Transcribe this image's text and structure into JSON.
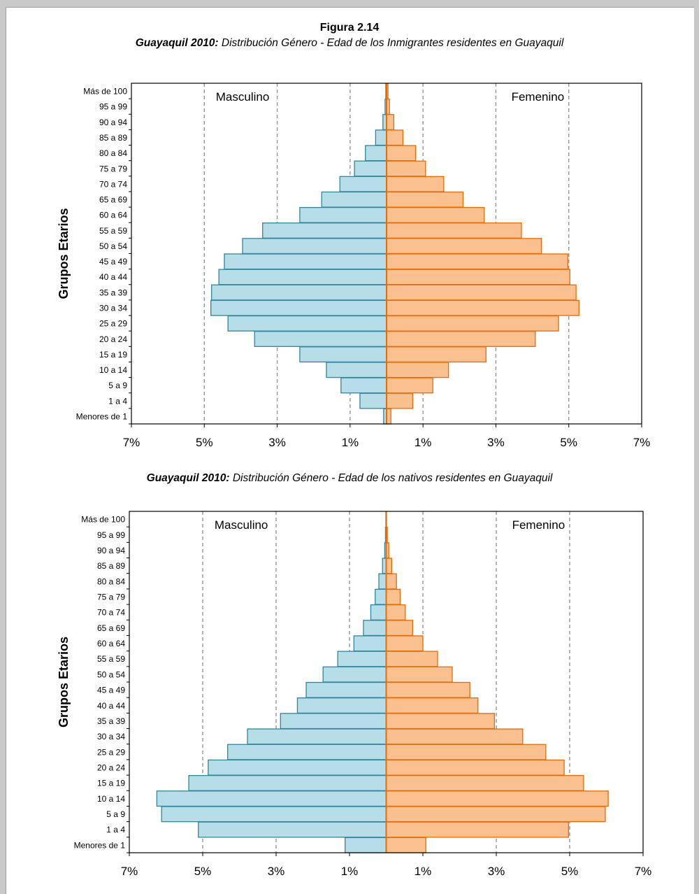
{
  "figure_label": "Figura 2.14",
  "colors": {
    "male_fill": "#b7dde8",
    "male_stroke": "#31859c",
    "female_fill": "#fac090",
    "female_stroke": "#e46c0a",
    "grid": "#8c8c8c"
  },
  "chart_data": [
    {
      "type": "bar",
      "orientation": "horizontal-pyramid",
      "title_bold": "Guayaquil 2010:",
      "title_rest": " Distribución Género - Edad de los Inmigrantes residentes en Guayaquil",
      "ylabel": "Grupos Etarios",
      "xlim": [
        -7,
        7
      ],
      "x_ticks": [
        -7,
        -5,
        -3,
        -1,
        1,
        3,
        5,
        7
      ],
      "x_tick_labels": [
        "7%",
        "5%",
        "3%",
        "1%",
        "1%",
        "3%",
        "5%",
        "7%"
      ],
      "gridlines_dashed": [
        -5,
        -3,
        -1,
        1,
        3,
        5
      ],
      "categories": [
        "Menores de 1",
        "1 a 4",
        "5 a 9",
        "10 a 14",
        "15 a 19",
        "20 a 24",
        "25 a 29",
        "30 a 34",
        "35 a 39",
        "40 a 44",
        "45 a 49",
        "50 a 54",
        "55 a 59",
        "60 a 64",
        "65 a 69",
        "70 a 74",
        "75 a 79",
        "80 a 84",
        "85 a 89",
        "90 a 94",
        "95 a 99",
        "Más de 100"
      ],
      "series": [
        {
          "name": "Masculino",
          "values": [
            0.08,
            0.73,
            1.25,
            1.65,
            2.38,
            3.62,
            4.35,
            4.82,
            4.8,
            4.6,
            4.45,
            3.95,
            3.4,
            2.38,
            1.78,
            1.28,
            0.88,
            0.58,
            0.3,
            0.1,
            0.04,
            0.02
          ]
        },
        {
          "name": "Femenino",
          "values": [
            0.12,
            0.72,
            1.27,
            1.7,
            2.73,
            4.08,
            4.72,
            5.28,
            5.2,
            5.03,
            4.97,
            4.25,
            3.7,
            2.68,
            2.1,
            1.57,
            1.07,
            0.8,
            0.45,
            0.2,
            0.08,
            0.04
          ]
        }
      ],
      "annotations": [
        "Masculino",
        "Femenino"
      ]
    },
    {
      "type": "bar",
      "orientation": "horizontal-pyramid",
      "title_bold": "Guayaquil 2010:",
      "title_rest": " Distribución Género - Edad de los nativos residentes en Guayaquil",
      "ylabel": "Grupos Etarios",
      "xlim": [
        -7,
        7
      ],
      "x_ticks": [
        -7,
        -5,
        -3,
        -1,
        1,
        3,
        5,
        7
      ],
      "x_tick_labels": [
        "7%",
        "5%",
        "3%",
        "1%",
        "1%",
        "3%",
        "5%",
        "7%"
      ],
      "gridlines_dashed": [
        -5,
        -3,
        -1,
        1,
        3,
        5
      ],
      "categories": [
        "Menores de 1",
        "1 a 4",
        "5 a 9",
        "10 a 14",
        "15 a 19",
        "20 a 24",
        "25 a 29",
        "30 a 34",
        "35 a 39",
        "40 a 44",
        "45 a 49",
        "50 a 54",
        "55 a 59",
        "60 a 64",
        "65 a 69",
        "70 a 74",
        "75 a 79",
        "80 a 84",
        "85 a 89",
        "90 a 94",
        "95 a 99",
        "Más de 100"
      ],
      "series": [
        {
          "name": "Masculino",
          "values": [
            1.12,
            5.12,
            6.12,
            6.25,
            5.38,
            4.85,
            4.32,
            3.78,
            2.88,
            2.42,
            2.18,
            1.72,
            1.32,
            0.88,
            0.62,
            0.42,
            0.3,
            0.2,
            0.1,
            0.04,
            0.02,
            0.01
          ]
        },
        {
          "name": "Femenino",
          "values": [
            1.08,
            4.97,
            5.97,
            6.05,
            5.38,
            4.85,
            4.35,
            3.72,
            2.95,
            2.5,
            2.28,
            1.8,
            1.4,
            1.0,
            0.72,
            0.52,
            0.38,
            0.28,
            0.15,
            0.07,
            0.03,
            0.01
          ]
        }
      ],
      "annotations": [
        "Masculino",
        "Femenino"
      ]
    }
  ]
}
